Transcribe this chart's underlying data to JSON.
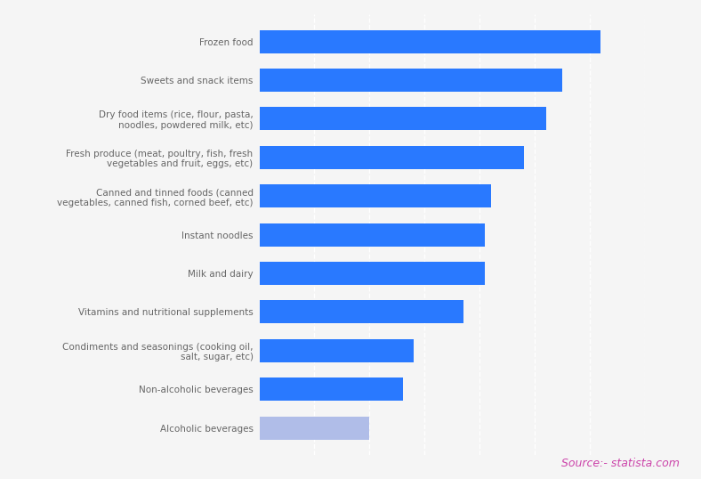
{
  "categories": [
    "Frozen food",
    "Sweets and snack items",
    "Dry food items (rice, flour, pasta,\nnoodles, powdered milk, etc)",
    "Fresh produce (meat, poultry, fish, fresh\nvegetables and fruit, eggs, etc)",
    "Canned and tinned foods (canned\nvegetables, canned fish, corned beef, etc)",
    "Instant noodles",
    "Milk and dairy",
    "Vitamins and nutritional supplements",
    "Condiments and seasonings (cooking oil,\nsalt, sugar, etc)",
    "Non-alcoholic beverages",
    "Alcoholic beverages"
  ],
  "values": [
    62,
    55,
    52,
    48,
    42,
    41,
    41,
    37,
    28,
    26,
    20
  ],
  "bar_color": "#2979FF",
  "last_bar_color": "#b0bde8",
  "background_color": "#f5f5f5",
  "grid_color": "#ffffff",
  "source_text": "Source:- statista.com",
  "source_color": "#cc44aa",
  "xlim": [
    0,
    70
  ],
  "grid_positions": [
    10,
    20,
    30,
    40,
    50,
    60,
    70
  ]
}
